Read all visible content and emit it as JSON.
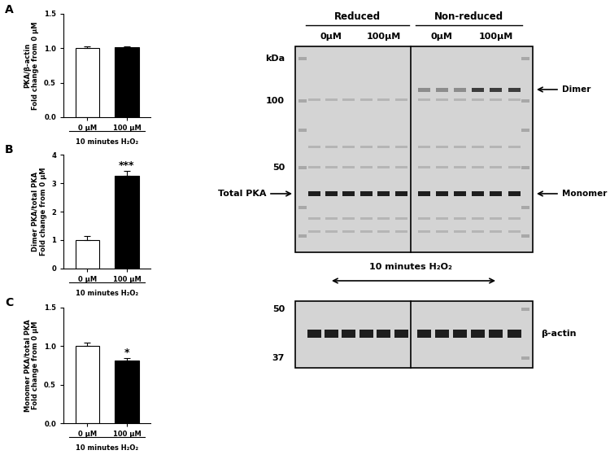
{
  "chart_data": [
    {
      "type": "bar",
      "panel": "A",
      "y_label": "PKA/β-actin\nFold change from 0 μM",
      "x_label": "10 minutes H₂O₂",
      "categories": [
        "0 μM",
        "100 μM"
      ],
      "values": [
        1.0,
        1.01
      ],
      "errors": [
        0.03,
        0.02
      ],
      "colors": [
        "#ffffff",
        "#000000"
      ],
      "significance": [
        null,
        null
      ],
      "ylim": [
        0,
        1.5
      ],
      "yticks": [
        {
          "value": 0,
          "label": "0.0"
        },
        {
          "value": 0.5,
          "label": "0.5"
        },
        {
          "value": 1,
          "label": "1.0"
        },
        {
          "value": 1.5,
          "label": "1.5"
        }
      ]
    },
    {
      "type": "bar",
      "panel": "B",
      "y_label": "Dimer PKA/total PKA\nFold change from 0 μM",
      "x_label": "10 minutes H₂O₂",
      "categories": [
        "0 μM",
        "100 μM"
      ],
      "values": [
        1.0,
        3.27
      ],
      "errors": [
        0.15,
        0.15
      ],
      "colors": [
        "#ffffff",
        "#000000"
      ],
      "significance": [
        null,
        "***"
      ],
      "ylim": [
        0,
        4
      ],
      "yticks": [
        0,
        1,
        2,
        3,
        4
      ]
    },
    {
      "type": "bar",
      "panel": "C",
      "y_label": "Monomer PKA/total PKA\nFold change from 0 μM",
      "x_label": "10 minutes H₂O₂",
      "categories": [
        "0 μM",
        "100 μM"
      ],
      "values": [
        1.0,
        0.81
      ],
      "errors": [
        0.05,
        0.03
      ],
      "colors": [
        "#ffffff",
        "#000000"
      ],
      "significance": [
        null,
        "*"
      ],
      "ylim": [
        0,
        1.5
      ],
      "yticks": [
        {
          "value": 0,
          "label": "0.0"
        },
        {
          "value": 0.5,
          "label": "0.5"
        },
        {
          "value": 1,
          "label": "1.0"
        },
        {
          "value": 1.5,
          "label": "1.5"
        }
      ]
    }
  ],
  "blot": {
    "groups": [
      {
        "label": "Reduced",
        "doses": [
          "0μM",
          "100μM"
        ]
      },
      {
        "label": "Non-reduced",
        "doses": [
          "0μM",
          "100μM"
        ]
      }
    ],
    "marker_unit": "kDa",
    "markers": [
      100,
      50
    ],
    "left_label": "Total PKA",
    "right_labels": [
      "Dimer",
      "Monomer"
    ],
    "treatment": "10 minutes H₂O₂",
    "loading_markers": [
      50,
      37
    ],
    "loading_label": "β-actin"
  }
}
